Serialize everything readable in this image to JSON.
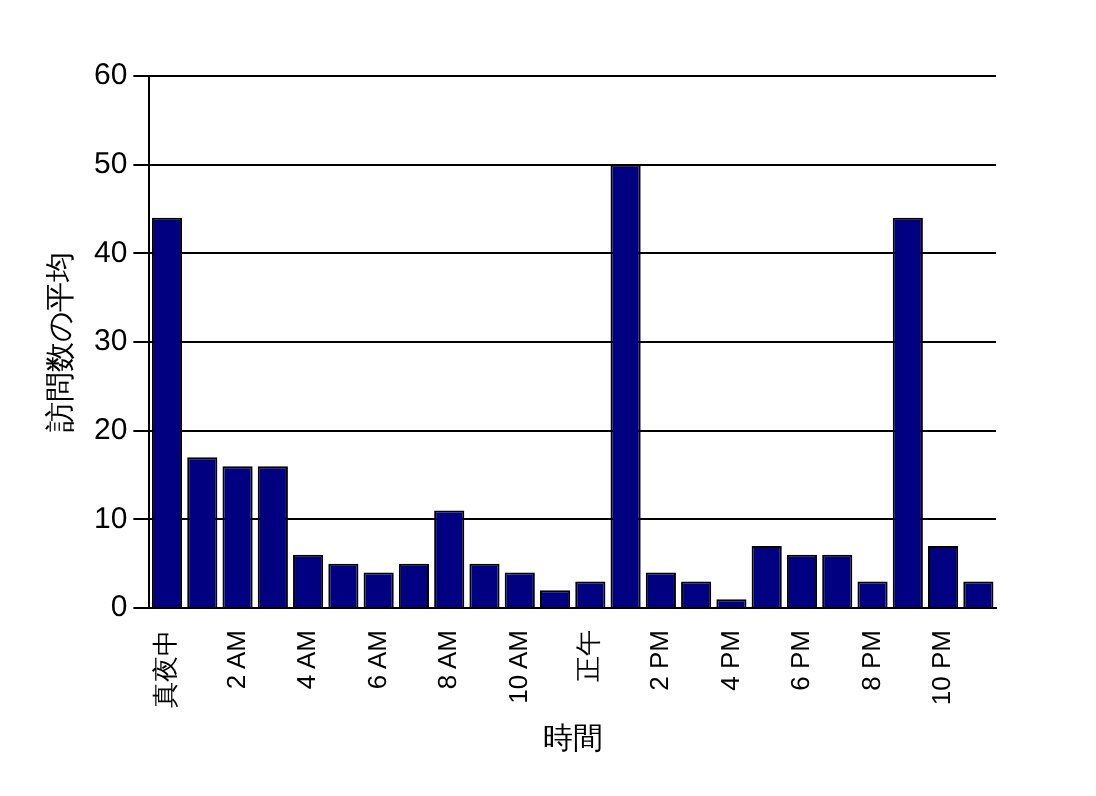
{
  "chart_data": {
    "type": "bar",
    "xlabel": "時間",
    "ylabel": "訪問数の平均",
    "categories": [
      "真夜中",
      null,
      "2 AM",
      null,
      "4 AM",
      null,
      "6 AM",
      null,
      "8 AM",
      null,
      "10 AM",
      null,
      "正午",
      null,
      "2 PM",
      null,
      "4 PM",
      null,
      "6 PM",
      null,
      "8 PM",
      null,
      "10 PM",
      null
    ],
    "values": [
      44,
      17,
      16,
      16,
      6,
      5,
      4,
      5,
      11,
      5,
      4,
      2,
      3,
      50,
      4,
      3,
      1,
      7,
      6,
      6,
      3,
      44,
      7,
      3
    ],
    "color": "#000080",
    "ylim": [
      0,
      60
    ],
    "yticks": [
      0,
      10,
      20,
      30,
      40,
      50,
      60
    ],
    "grid": "y",
    "legend": false
  }
}
